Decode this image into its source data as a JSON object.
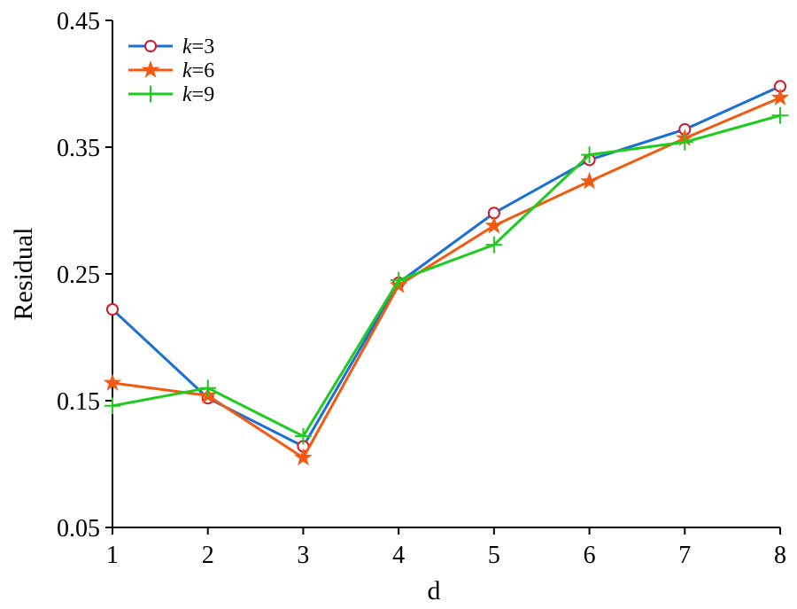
{
  "chart_data": {
    "type": "line",
    "xlabel": "d",
    "ylabel": "Residual",
    "x": [
      1,
      2,
      3,
      4,
      5,
      6,
      7,
      8
    ],
    "xlim": [
      1,
      8
    ],
    "ylim": [
      0.05,
      0.45
    ],
    "xticks": [
      "1",
      "2",
      "3",
      "4",
      "5",
      "6",
      "7",
      "8"
    ],
    "yticks": [
      "0.05",
      "0.15",
      "0.25",
      "0.35",
      "0.45"
    ],
    "grid": false,
    "legend_position": "top-left",
    "series": [
      {
        "name_var": "k",
        "name_val": "=3",
        "color": "#1a6fd6",
        "marker": "open-circle",
        "marker_color": "#d21a2a",
        "values": [
          0.222,
          0.152,
          0.114,
          0.243,
          0.298,
          0.34,
          0.364,
          0.398
        ]
      },
      {
        "name_var": "k",
        "name_val": "=6",
        "color": "#f25a12",
        "marker": "star",
        "marker_color": "#f25a12",
        "values": [
          0.164,
          0.154,
          0.105,
          0.241,
          0.288,
          0.323,
          0.357,
          0.389
        ]
      },
      {
        "name_var": "k",
        "name_val": "=9",
        "color": "#1ecb1e",
        "marker": "plus",
        "marker_color": "#1ecb1e",
        "values": [
          0.146,
          0.16,
          0.122,
          0.245,
          0.273,
          0.344,
          0.354,
          0.375
        ]
      }
    ]
  }
}
